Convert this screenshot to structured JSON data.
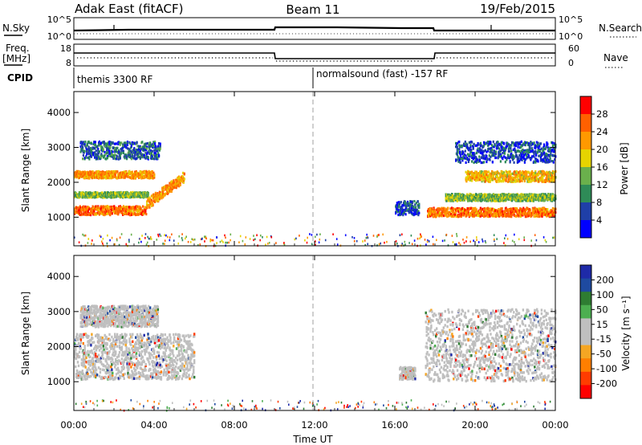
{
  "header": {
    "radar": "Adak East (fitACF)",
    "beam": "Beam 11",
    "date": "19/Feb/2015"
  },
  "panels": {
    "nsky": {
      "label": "N.Sky",
      "right_label": "N.Search",
      "left_ticks": [
        "10^5",
        "10^0"
      ],
      "right_ticks": [
        "10^5",
        "10^0"
      ]
    },
    "freq": {
      "label": "Freq.",
      "unit": "[MHz]",
      "right_label": "Nave",
      "left_ticks": [
        "18",
        "8"
      ],
      "right_ticks": [
        "60",
        "0"
      ]
    },
    "cpid": {
      "label": "CPID",
      "programs": [
        "themis 3300 RF",
        "normalsound (fast) -157 RF"
      ]
    }
  },
  "colors": {
    "power_scale": [
      "#0000ff",
      "#1f3fa8",
      "#2e8b57",
      "#6ab04c",
      "#e6d400",
      "#ff9900",
      "#ff6000",
      "#ff0000"
    ],
    "velocity_scale": [
      "#1e2aa8",
      "#1e4aa0",
      "#2e7d32",
      "#4caf50",
      "#bfbfbf",
      "#bfbfbf",
      "#f5a623",
      "#ff7f00",
      "#ff3c00",
      "#ff0000"
    ]
  },
  "chart_data": [
    {
      "type": "heatmap",
      "title": "Power",
      "ylabel": "Slant Range [km]",
      "y_ticks": [
        "1000",
        "2000",
        "3000",
        "4000"
      ],
      "ylim": [
        180,
        4600
      ],
      "colorbar": {
        "label": "Power [dB]",
        "ticks": [
          "4",
          "8",
          "12",
          "16",
          "20",
          "24",
          "28"
        ],
        "range": [
          0,
          30
        ]
      },
      "x_ticks": [
        "00:00",
        "04:00",
        "08:00",
        "12:00",
        "16:00",
        "20:00",
        "00:00"
      ],
      "xlabel": "Time UT",
      "features": [
        {
          "start_h": 0.0,
          "end_h": 3.6,
          "range_km": [
            1100,
            1350
          ],
          "db": 28
        },
        {
          "start_h": 3.6,
          "end_h": 5.5,
          "range_km": [
            1350,
            2200
          ],
          "db": 26
        },
        {
          "start_h": 0.0,
          "end_h": 4.0,
          "range_km": [
            2150,
            2350
          ],
          "db": 26
        },
        {
          "start_h": 0.0,
          "end_h": 3.7,
          "range_km": [
            1600,
            1750
          ],
          "db": 18
        },
        {
          "start_h": 0.3,
          "end_h": 4.3,
          "range_km": [
            2700,
            3200
          ],
          "db": 12
        },
        {
          "start_h": 16.0,
          "end_h": 17.2,
          "range_km": [
            1100,
            1500
          ],
          "db": 10
        },
        {
          "start_h": 17.6,
          "end_h": 24.0,
          "range_km": [
            1050,
            1300
          ],
          "db": 28
        },
        {
          "start_h": 19.5,
          "end_h": 24.0,
          "range_km": [
            2050,
            2350
          ],
          "db": 24
        },
        {
          "start_h": 18.5,
          "end_h": 24.0,
          "range_km": [
            1500,
            1700
          ],
          "db": 18
        },
        {
          "start_h": 19.0,
          "end_h": 24.0,
          "range_km": [
            2600,
            3200
          ],
          "db": 10
        }
      ]
    },
    {
      "type": "heatmap",
      "title": "Velocity",
      "ylabel": "Slant Range [km]",
      "y_ticks": [
        "1000",
        "2000",
        "3000",
        "4000"
      ],
      "ylim": [
        180,
        4600
      ],
      "colorbar": {
        "label": "Velocity [m s⁻¹]",
        "ticks": [
          "200",
          "100",
          "50",
          "15",
          "-15",
          "-50",
          "-100",
          "-200"
        ],
        "range": [
          -250,
          250
        ]
      },
      "x_ticks": [
        "00:00",
        "04:00",
        "08:00",
        "12:00",
        "16:00",
        "20:00",
        "00:00"
      ],
      "xlabel": "Time UT",
      "features": [
        {
          "start_h": 0.0,
          "end_h": 6.0,
          "range_km": [
            1100,
            2400
          ],
          "v": 0
        },
        {
          "start_h": 0.3,
          "end_h": 4.2,
          "range_km": [
            2600,
            3200
          ],
          "v": 0
        },
        {
          "start_h": 16.2,
          "end_h": 17.0,
          "range_km": [
            1100,
            1450
          ],
          "v": 0
        },
        {
          "start_h": 17.5,
          "end_h": 24.0,
          "range_km": [
            1050,
            3100
          ],
          "v": 0
        }
      ]
    }
  ]
}
